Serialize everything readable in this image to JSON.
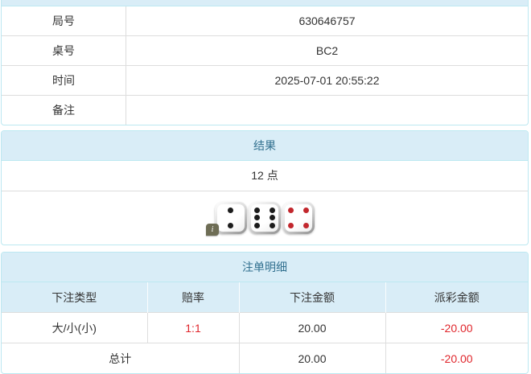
{
  "colors": {
    "header_bg": "#d9edf7",
    "panel_border": "#bce8f1",
    "header_text": "#31708f",
    "body_text": "#333333",
    "negative_red": "#e0262c",
    "die_pip_black": "#1c1c1c",
    "die_pip_red": "#c2272d",
    "info_badge_bg": "#6e6d55"
  },
  "info": {
    "rows": [
      {
        "label": "局号",
        "value": "630646757"
      },
      {
        "label": "桌号",
        "value": "BC2"
      },
      {
        "label": "时间",
        "value": "2025-07-01 20:55:22"
      },
      {
        "label": "备注",
        "value": ""
      }
    ]
  },
  "result": {
    "title": "结果",
    "points": "12 点",
    "dice": [
      {
        "value": 2,
        "color": "black"
      },
      {
        "value": 6,
        "color": "black"
      },
      {
        "value": 4,
        "color": "red"
      }
    ],
    "info_badge": "i"
  },
  "bets": {
    "title": "注单明细",
    "columns": [
      "下注类型",
      "赔率",
      "下注金额",
      "派彩金额"
    ],
    "rows": [
      {
        "type": "大/小(小)",
        "odds": "1:1",
        "amount": "20.00",
        "payout": "-20.00"
      }
    ],
    "total": {
      "label": "总计",
      "amount": "20.00",
      "payout": "-20.00"
    }
  }
}
